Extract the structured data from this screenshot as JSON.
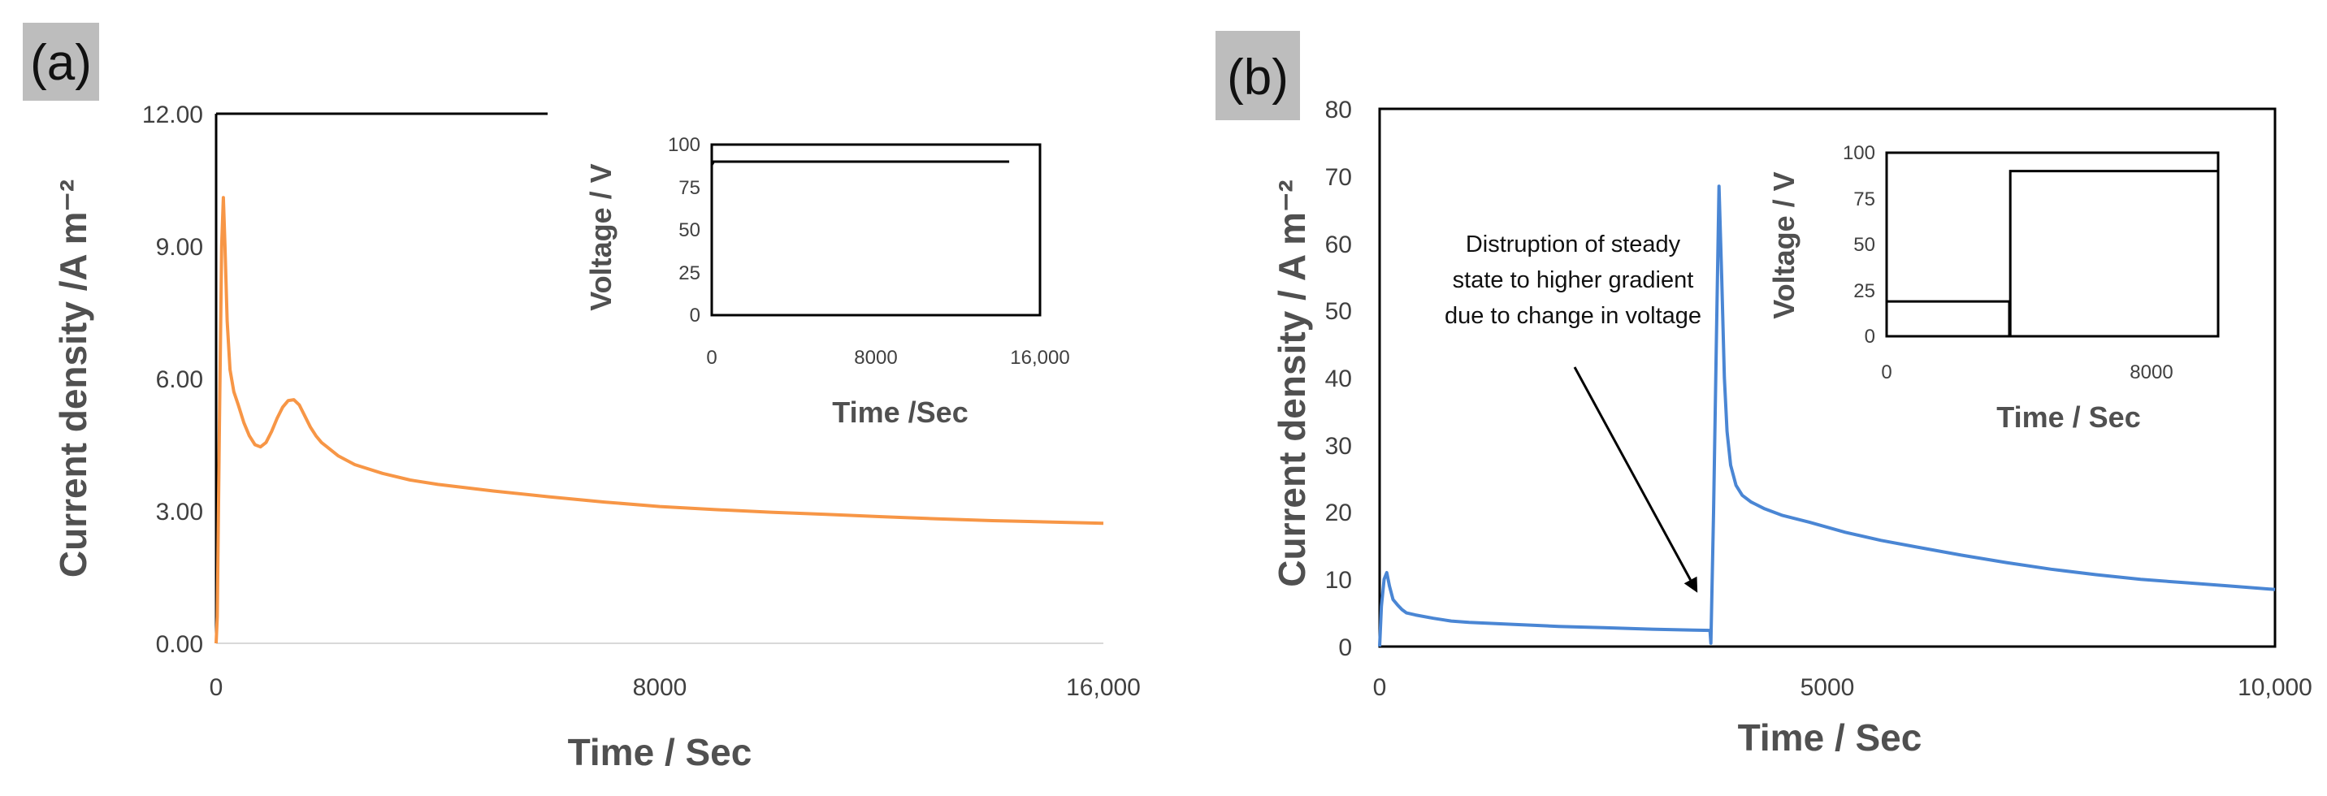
{
  "colors": {
    "panel_a_line": "#f79646",
    "panel_b_line": "#4a86d4",
    "inset_line": "#000000",
    "label_box": "#bdbdbd"
  },
  "chart_data": [
    {
      "id": "a",
      "panel_label": "(a)",
      "type": "line",
      "xlabel": "Time / Sec",
      "ylabel": "Current density /A m⁻²",
      "xlim": [
        0,
        16000
      ],
      "ylim": [
        0,
        12
      ],
      "x_ticks": [
        0,
        8000,
        16000
      ],
      "x_tick_labels": [
        "0",
        "8000",
        "16,000"
      ],
      "y_ticks": [
        0,
        3,
        6,
        9,
        12
      ],
      "y_tick_labels": [
        "0.00",
        "3.00",
        "6.00",
        "9.00",
        "12.00"
      ],
      "series": [
        {
          "name": "Current density",
          "color": "#f79646",
          "x": [
            0,
            20,
            60,
            100,
            130,
            160,
            200,
            250,
            320,
            400,
            500,
            600,
            700,
            800,
            900,
            1000,
            1100,
            1200,
            1300,
            1400,
            1500,
            1600,
            1700,
            1800,
            1900,
            2000,
            2200,
            2500,
            3000,
            3500,
            4000,
            5000,
            6000,
            7000,
            8000,
            9000,
            10000,
            11000,
            12000,
            13000,
            14000,
            15000,
            16000
          ],
          "y": [
            0,
            0.6,
            5.0,
            9.0,
            10.1,
            9.0,
            7.3,
            6.2,
            5.7,
            5.4,
            5.0,
            4.7,
            4.5,
            4.45,
            4.55,
            4.8,
            5.1,
            5.35,
            5.5,
            5.52,
            5.4,
            5.15,
            4.9,
            4.7,
            4.55,
            4.45,
            4.25,
            4.05,
            3.85,
            3.7,
            3.6,
            3.45,
            3.32,
            3.2,
            3.1,
            3.03,
            2.97,
            2.92,
            2.87,
            2.82,
            2.78,
            2.75,
            2.72
          ]
        }
      ],
      "inset": {
        "xlabel": "Time /Sec",
        "ylabel": "Voltage / V",
        "xlim": [
          0,
          16000
        ],
        "ylim": [
          0,
          100
        ],
        "x_ticks": [
          0,
          8000,
          16000
        ],
        "x_tick_labels": [
          "0",
          "8000",
          "16,000"
        ],
        "y_ticks": [
          0,
          25,
          50,
          75,
          100
        ],
        "y_tick_labels": [
          "0",
          "25",
          "50",
          "75",
          "100"
        ],
        "series": [
          {
            "name": "Voltage",
            "x": [
              0,
              0,
              100,
              14500
            ],
            "y": [
              0,
              88,
              90,
              90
            ]
          }
        ]
      }
    },
    {
      "id": "b",
      "panel_label": "(b)",
      "type": "line",
      "xlabel": "Time / Sec",
      "ylabel": "Current density / A m⁻²",
      "xlim": [
        0,
        10000
      ],
      "ylim": [
        0,
        80
      ],
      "x_ticks": [
        0,
        5000,
        10000
      ],
      "x_tick_labels": [
        "0",
        "5000",
        "10,000"
      ],
      "y_ticks": [
        0,
        10,
        20,
        30,
        40,
        50,
        60,
        70,
        80
      ],
      "y_tick_labels": [
        "0",
        "10",
        "20",
        "30",
        "40",
        "50",
        "60",
        "70",
        "80"
      ],
      "series": [
        {
          "name": "Current density",
          "color": "#4a86d4",
          "x": [
            0,
            20,
            50,
            80,
            110,
            150,
            200,
            250,
            300,
            400,
            600,
            800,
            1000,
            1500,
            2000,
            2500,
            3000,
            3500,
            3690,
            3700,
            3730,
            3760,
            3790,
            3820,
            3850,
            3880,
            3920,
            3980,
            4050,
            4150,
            4300,
            4500,
            4800,
            5200,
            5600,
            6000,
            6500,
            7000,
            7500,
            8000,
            8500,
            9000,
            9500,
            10000
          ],
          "y": [
            0,
            6,
            10,
            11,
            9,
            7,
            6.2,
            5.5,
            5.0,
            4.7,
            4.2,
            3.8,
            3.6,
            3.3,
            3.0,
            2.8,
            2.6,
            2.45,
            2.4,
            0.5,
            20,
            45,
            68.5,
            55,
            40,
            32,
            27,
            24,
            22.5,
            21.5,
            20.5,
            19.5,
            18.5,
            17,
            15.8,
            14.8,
            13.6,
            12.5,
            11.5,
            10.7,
            10.0,
            9.5,
            9.0,
            8.5
          ]
        }
      ],
      "annotation": {
        "lines": [
          "Distruption of steady",
          "state to higher gradient",
          "due to change in voltage"
        ],
        "arrow_to": [
          3550,
          8
        ]
      },
      "inset": {
        "xlabel": "Time / Sec",
        "ylabel": "Voltage / V",
        "xlim": [
          0,
          10000
        ],
        "ylim": [
          0,
          100
        ],
        "x_ticks": [
          0,
          8000
        ],
        "x_tick_labels": [
          "0",
          "8000"
        ],
        "y_ticks": [
          0,
          25,
          50,
          75,
          100
        ],
        "y_tick_labels": [
          "0",
          "25",
          "50",
          "75",
          "100"
        ],
        "series": [
          {
            "name": "Voltage",
            "x": [
              0,
              0,
              3700,
              3700,
              3730,
              3730,
              10000
            ],
            "y": [
              0,
              19,
              19,
              0,
              0,
              90,
              90
            ]
          }
        ]
      }
    }
  ]
}
